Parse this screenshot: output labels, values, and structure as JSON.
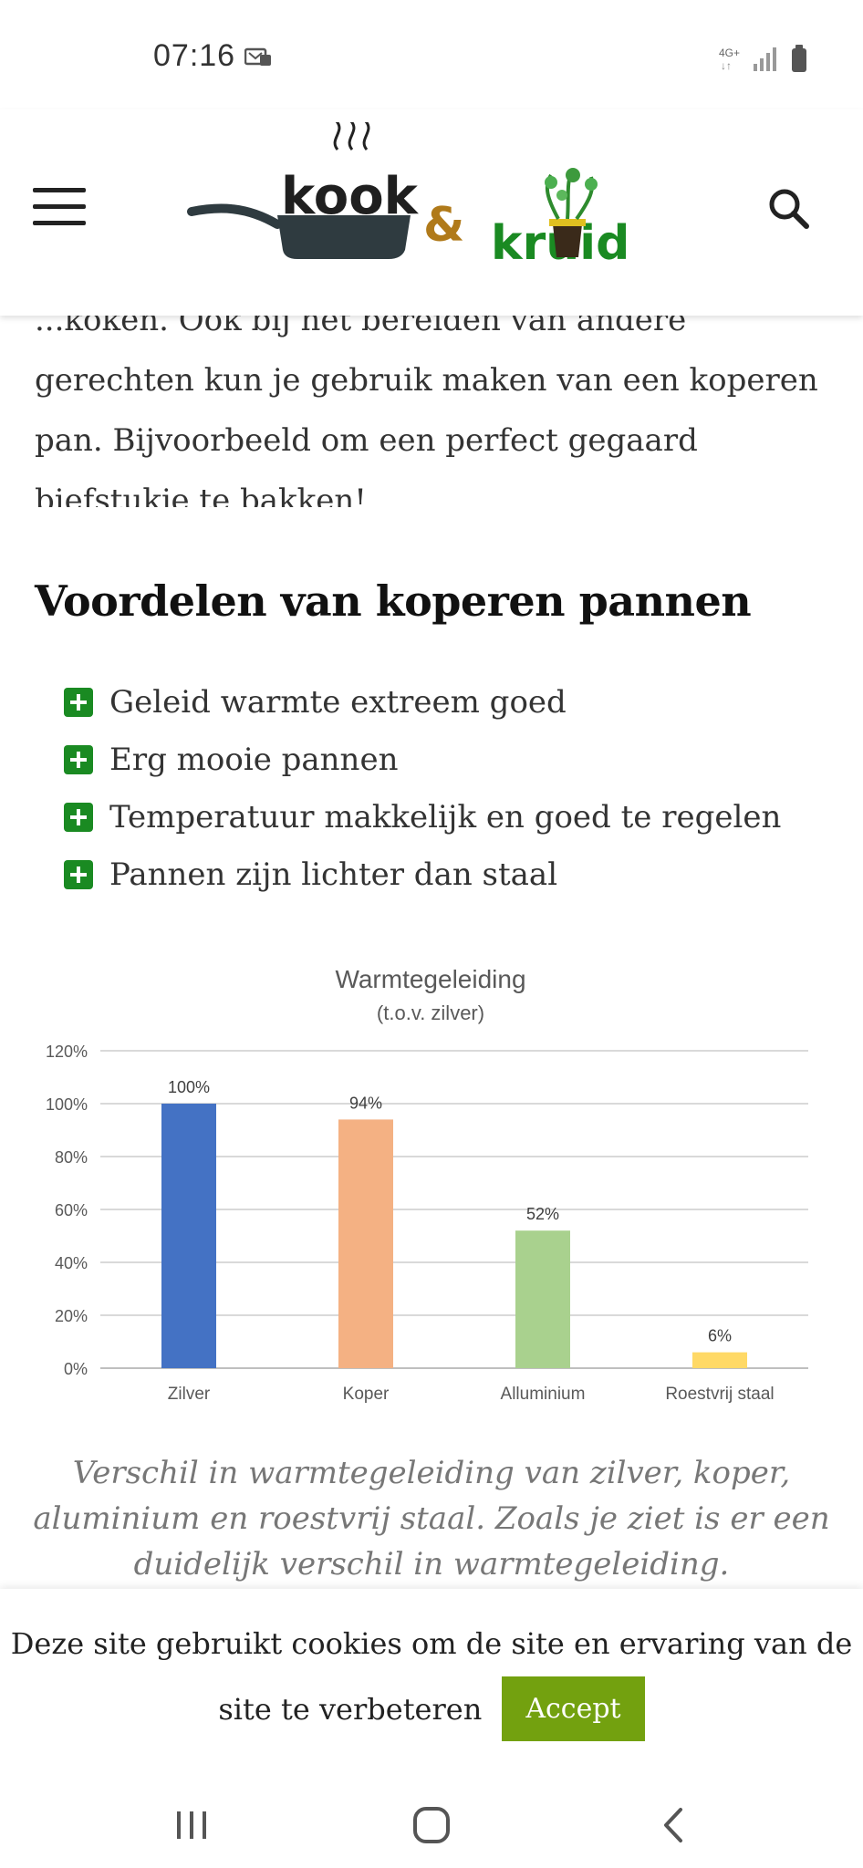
{
  "status_bar": {
    "time": "07:16",
    "network": "4G+"
  },
  "header": {
    "logo_word1": "kook",
    "logo_amp": "&",
    "logo_word2": "kruid",
    "colors": {
      "brand_green": "#1a8a22",
      "amp_brown": "#b07a1a",
      "pan_dark": "#2f3b40"
    }
  },
  "article": {
    "intro_partial": "...koken. Ook bij het bereiden van andere gerechten kun je gebruik maken van een koperen pan. Bijvoorbeeld om een perfect gegaard biefstukje te bakken!",
    "heading": "Voordelen van koperen pannen",
    "benefits": [
      "Geleid warmte extreem goed",
      "Erg mooie pannen",
      "Temperatuur makkelijk en goed te regelen",
      "Pannen zijn lichter dan staal"
    ],
    "caption": "Verschil in warmtegeleiding van zilver, koper, aluminium en roestvrij staal. Zoals je ziet is er een duidelijk verschil in warmtegeleiding."
  },
  "chart_data": {
    "type": "bar",
    "title": "Warmtegeleiding",
    "subtitle": "(t.o.v. zilver)",
    "categories": [
      "Zilver",
      "Koper",
      "Alluminium",
      "Roestvrij staal"
    ],
    "values": [
      100,
      94,
      52,
      6
    ],
    "data_labels": [
      "100%",
      "94%",
      "52%",
      "6%"
    ],
    "colors": [
      "#4472c4",
      "#f4b183",
      "#a9d18e",
      "#ffd966"
    ],
    "y_ticks": [
      "0%",
      "20%",
      "40%",
      "60%",
      "80%",
      "100%",
      "120%"
    ],
    "ylim": [
      0,
      120
    ],
    "grid": true
  },
  "cookie": {
    "text_line1": "Deze site gebruikt cookies om de site en ervaring van de",
    "text_line2": "site te verbeteren",
    "accept": "Accept"
  }
}
